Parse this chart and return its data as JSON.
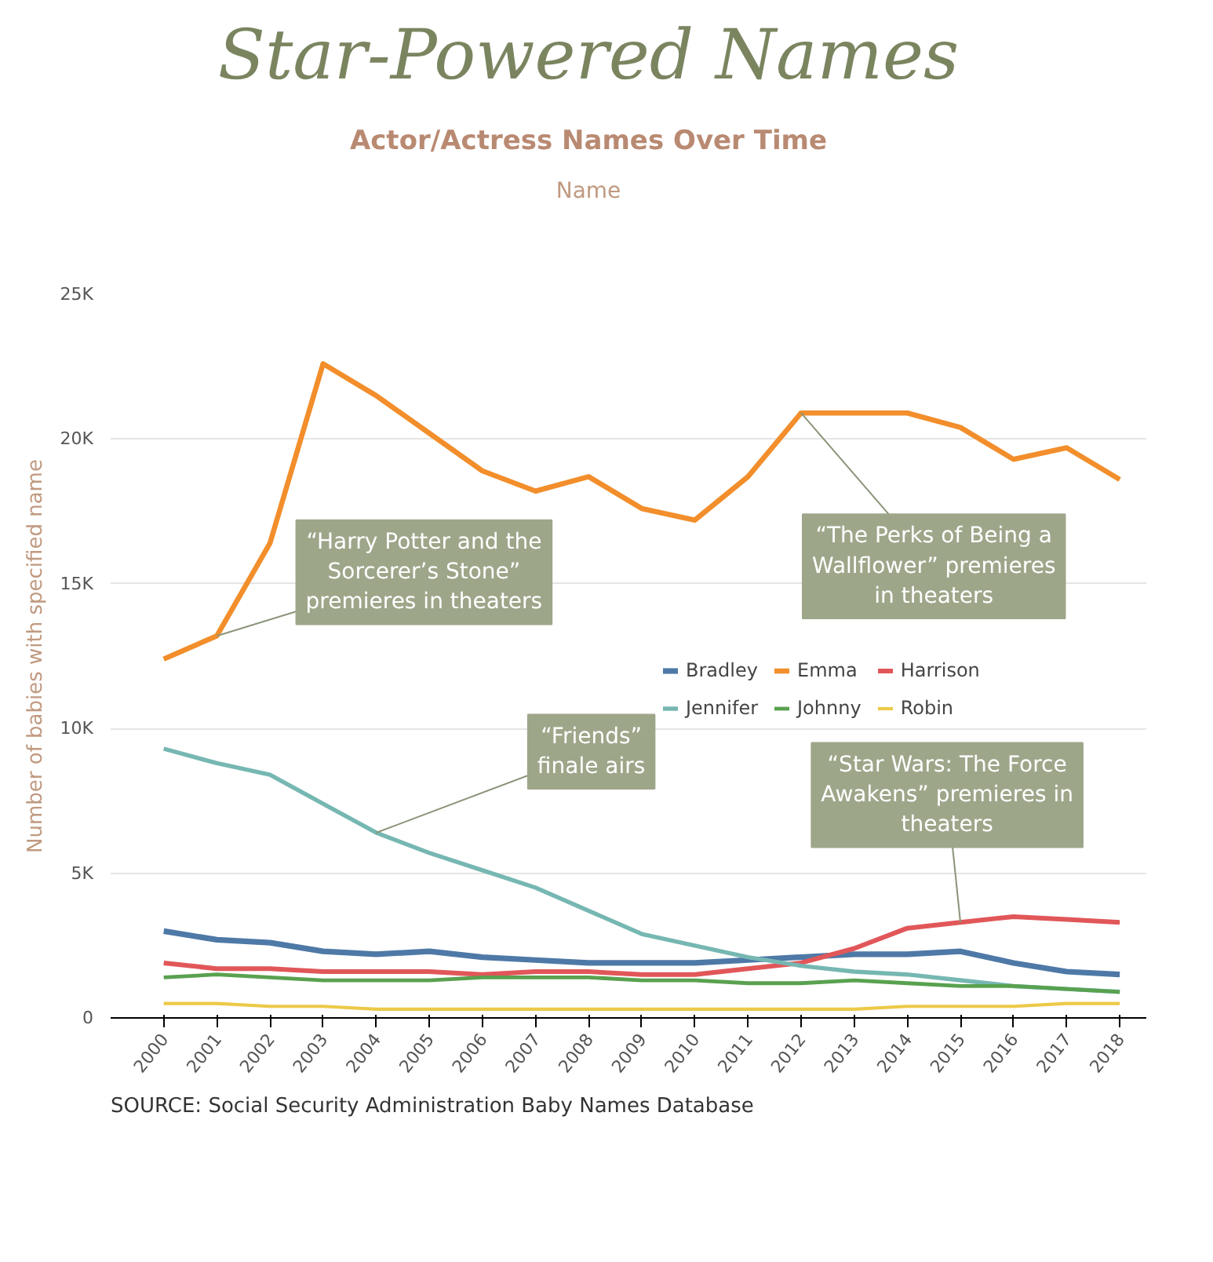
{
  "chart_data": {
    "type": "line",
    "title": "Star-Powered Names",
    "subtitle": "Actor/Actress Names Over Time",
    "ylabel": "Number of babies with specified name",
    "legend_title": "Name",
    "legend": "right",
    "grid": "y",
    "marker": "none",
    "line_style": "solid",
    "categories": [
      "2000",
      "2001",
      "2002",
      "2003",
      "2004",
      "2005",
      "2006",
      "2007",
      "2008",
      "2009",
      "2010",
      "2011",
      "2012",
      "2013",
      "2014",
      "2015",
      "2016",
      "2017",
      "2018"
    ],
    "ylim": [
      0,
      25000
    ],
    "yticks": [
      {
        "value": 0,
        "label": "0"
      },
      {
        "value": 5000,
        "label": "5K"
      },
      {
        "value": 10000,
        "label": "10K"
      },
      {
        "value": 15000,
        "label": "15K"
      },
      {
        "value": 20000,
        "label": "20K"
      },
      {
        "value": 25000,
        "label": "25K"
      }
    ],
    "series": [
      {
        "name": "Bradley",
        "color": "#4e79a7",
        "values": [
          3000,
          2700,
          2600,
          2300,
          2200,
          2300,
          2100,
          2000,
          1900,
          1900,
          1900,
          2000,
          2100,
          2200,
          2200,
          2300,
          1900,
          1600,
          1500
        ]
      },
      {
        "name": "Emma",
        "color": "#f28e2b",
        "values": [
          12400,
          13200,
          16400,
          22600,
          21500,
          20200,
          18900,
          18200,
          18700,
          17600,
          17200,
          18700,
          20900,
          20900,
          20900,
          20400,
          19300,
          19700,
          18600
        ]
      },
      {
        "name": "Harrison",
        "color": "#e15759",
        "values": [
          1900,
          1700,
          1700,
          1600,
          1600,
          1600,
          1500,
          1600,
          1600,
          1500,
          1500,
          1700,
          1900,
          2400,
          3100,
          3300,
          3500,
          3400,
          3300
        ]
      },
      {
        "name": "Jennifer",
        "color": "#76b7b2",
        "values": [
          9300,
          8800,
          8400,
          7400,
          6400,
          5700,
          5100,
          4500,
          3700,
          2900,
          2500,
          2100,
          1800,
          1600,
          1500,
          1300,
          1100,
          1000,
          900
        ]
      },
      {
        "name": "Johnny",
        "color": "#59a14f",
        "values": [
          1400,
          1500,
          1400,
          1300,
          1300,
          1300,
          1400,
          1400,
          1400,
          1300,
          1300,
          1200,
          1200,
          1300,
          1200,
          1100,
          1100,
          1000,
          900
        ]
      },
      {
        "name": "Robin",
        "color": "#edc948",
        "values": [
          500,
          500,
          400,
          400,
          300,
          300,
          300,
          300,
          300,
          300,
          300,
          300,
          300,
          300,
          400,
          400,
          400,
          500,
          500
        ]
      }
    ],
    "annotations": [
      {
        "text": "“Harry Potter and the\nSorcerer’s Stone”\npremieres in theaters",
        "x": "2001",
        "y": 13200
      },
      {
        "text": "“Friends”\nfinale airs",
        "x": "2004",
        "y": 6400
      },
      {
        "text": "“The Perks of Being a\nWallflower” premieres\nin theaters",
        "x": "2012",
        "y": 20900
      },
      {
        "text": "“Star Wars: The Force\nAwakens” premieres in\ntheaters",
        "x": "2015",
        "y": 3300
      },
      "SOURCE: Social Security Administration Baby Names Database"
    ]
  }
}
